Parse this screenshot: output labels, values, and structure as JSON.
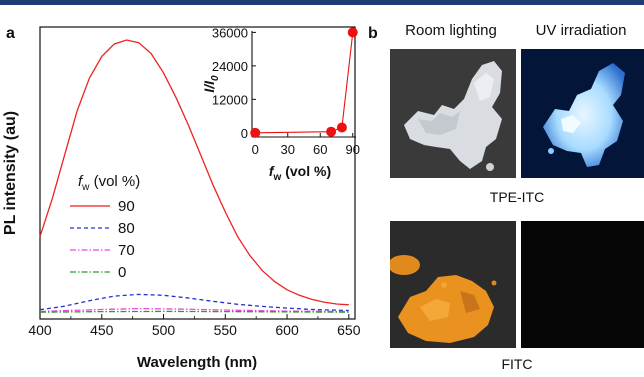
{
  "panel_a_letter": "a",
  "panel_b_letter": "b",
  "chart_data": [
    {
      "type": "line",
      "xlabel": "Wavelength (nm)",
      "ylabel": "PL intensity (au)",
      "xlim": [
        400,
        655
      ],
      "ylim": [
        0,
        1
      ],
      "xticks": [
        "400",
        "450",
        "500",
        "550",
        "600",
        "650"
      ],
      "legend_title": "f_w (vol %)",
      "legend_title_main": "f",
      "legend_title_sub": "w",
      "legend_title_rest": " (vol %)",
      "legend_placement": "center-left",
      "series": [
        {
          "name": "90",
          "color": "#ee2222",
          "dash": "solid",
          "x": [
            400,
            410,
            420,
            430,
            440,
            450,
            460,
            470,
            480,
            490,
            500,
            510,
            520,
            530,
            540,
            550,
            560,
            570,
            580,
            590,
            600,
            610,
            620,
            630,
            640,
            650
          ],
          "y": [
            0.28,
            0.42,
            0.58,
            0.74,
            0.86,
            0.94,
            0.985,
            1.0,
            0.99,
            0.95,
            0.88,
            0.79,
            0.69,
            0.58,
            0.47,
            0.37,
            0.28,
            0.21,
            0.155,
            0.115,
            0.085,
            0.065,
            0.05,
            0.04,
            0.033,
            0.03
          ]
        },
        {
          "name": "80",
          "color": "#2233cc",
          "dash": "dashed",
          "x": [
            400,
            420,
            440,
            460,
            480,
            500,
            520,
            540,
            560,
            580,
            600,
            620,
            650
          ],
          "y": [
            0.012,
            0.025,
            0.045,
            0.062,
            0.068,
            0.065,
            0.055,
            0.043,
            0.032,
            0.024,
            0.018,
            0.013,
            0.009
          ]
        },
        {
          "name": "70",
          "color": "#ee44dd",
          "dash": "dashdot",
          "x": [
            400,
            450,
            480,
            520,
            560,
            600,
            650
          ],
          "y": [
            0.006,
            0.013,
            0.016,
            0.014,
            0.01,
            0.007,
            0.005
          ]
        },
        {
          "name": "0",
          "color": "#339933",
          "dash": "dashdot",
          "x": [
            400,
            450,
            500,
            550,
            600,
            650
          ],
          "y": [
            0.003,
            0.005,
            0.006,
            0.005,
            0.004,
            0.003
          ]
        }
      ]
    },
    {
      "type": "scatter",
      "xlabel": "f_w (vol %)",
      "xlabel_main": "f",
      "xlabel_sub": "w",
      "xlabel_rest": " (vol %)",
      "ylabel": "I/I_0",
      "ylabel_main": "I/I",
      "ylabel_sub": "0",
      "xlim": [
        -3,
        93
      ],
      "ylim": [
        -1500,
        36500
      ],
      "xticks": [
        "0",
        "30",
        "60",
        "90"
      ],
      "yticks": [
        "0",
        "12000",
        "24000",
        "36000"
      ],
      "marker_color": "#ee1111",
      "x": [
        0,
        70,
        80,
        90
      ],
      "y": [
        1,
        400,
        1900,
        36000
      ]
    }
  ],
  "panel_b": {
    "col_headers": [
      "Room lighting",
      "UV irradiation"
    ],
    "row_labels": [
      "TPE-ITC",
      "FITC"
    ]
  }
}
